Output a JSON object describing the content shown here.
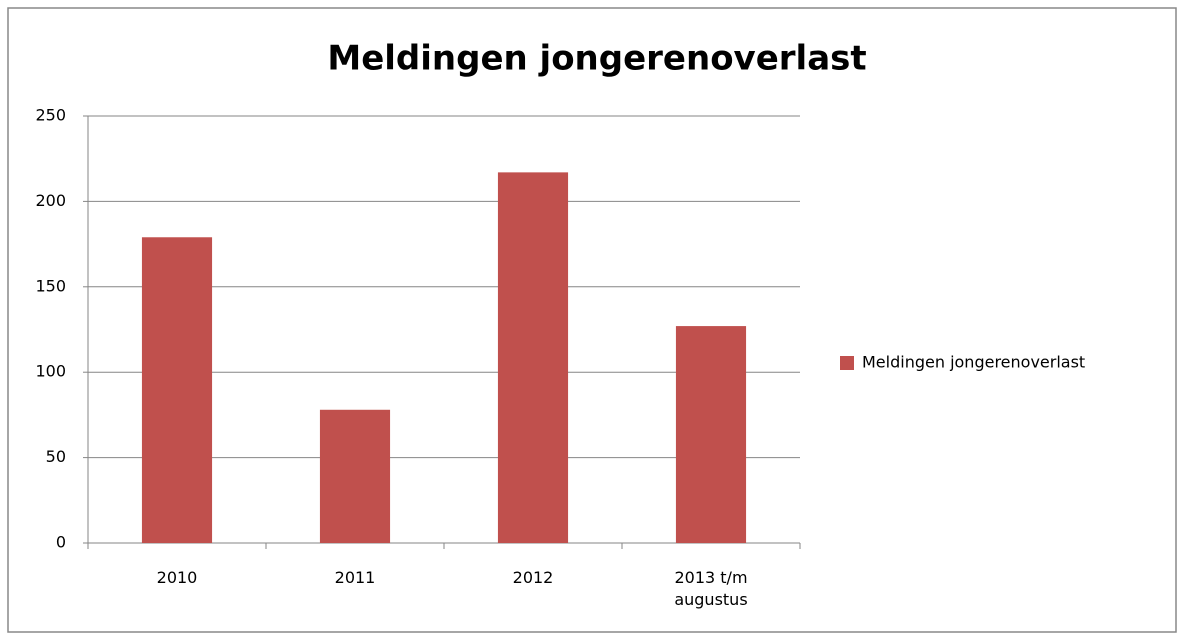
{
  "chart_data": {
    "type": "bar",
    "title": "Meldingen jongerenoverlast",
    "categories": [
      "2010",
      "2011",
      "2012",
      "2013 t/m augustus"
    ],
    "series": [
      {
        "name": "Meldingen jongerenoverlast",
        "color": "#c0504d",
        "values": [
          179,
          78,
          217,
          127
        ]
      }
    ],
    "ylim": [
      0,
      250
    ],
    "yticks": [
      0,
      50,
      100,
      150,
      200,
      250
    ],
    "grid": true,
    "legend": "right"
  }
}
